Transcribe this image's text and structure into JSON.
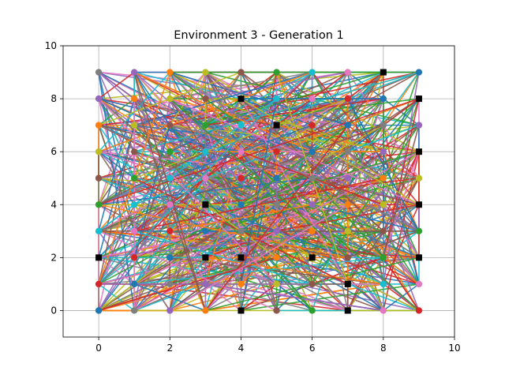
{
  "chart_data": {
    "type": "scatter",
    "title": "Environment 3 - Generation 1",
    "xlabel": "",
    "ylabel": "",
    "xlim": [
      -1,
      10
    ],
    "ylim": [
      -1,
      10
    ],
    "x_ticks": [
      "0",
      "2",
      "4",
      "6",
      "8",
      "10"
    ],
    "y_ticks": [
      "0",
      "2",
      "4",
      "6",
      "8",
      "10"
    ],
    "x_tick_values": [
      0,
      2,
      4,
      6,
      8,
      10
    ],
    "y_tick_values": [
      0,
      2,
      4,
      6,
      8,
      10
    ],
    "grid": true,
    "legend": "none",
    "series": [
      {
        "marker": "square",
        "color": "#000000",
        "points": [
          [
            8,
            9
          ],
          [
            4,
            8
          ],
          [
            9,
            8
          ],
          [
            5,
            7
          ],
          [
            9,
            6
          ],
          [
            3,
            4
          ],
          [
            9,
            4
          ],
          [
            0,
            2
          ],
          [
            3,
            2
          ],
          [
            4,
            2
          ],
          [
            6,
            2
          ],
          [
            9,
            2
          ],
          [
            7,
            1
          ],
          [
            4,
            0
          ],
          [
            7,
            0
          ]
        ]
      },
      {
        "marker": "circle",
        "colors": [
          "#1f77b4",
          "#ff7f0e",
          "#2ca02c",
          "#d62728",
          "#9467bd",
          "#8c564b",
          "#e377c2",
          "#7f7f7f",
          "#bcbd22",
          "#17becf"
        ],
        "grid_points": "all integer points with x in 0..9 and y in 0..9",
        "xs": [
          0,
          1,
          2,
          3,
          4,
          5,
          6,
          7,
          8,
          9
        ],
        "ys": [
          0,
          1,
          2,
          3,
          4,
          5,
          6,
          7,
          8,
          9
        ]
      }
    ]
  }
}
